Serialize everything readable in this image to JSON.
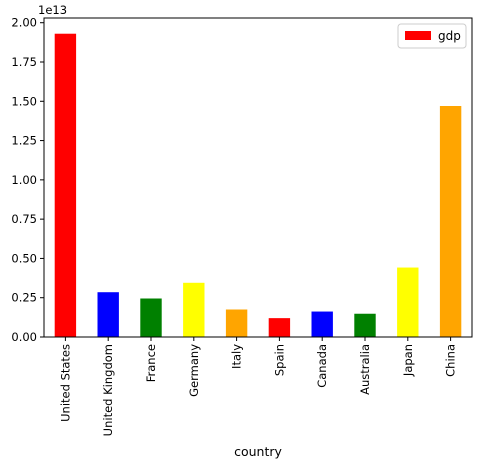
{
  "chart_data": {
    "type": "bar",
    "title": "",
    "xlabel": "country",
    "ylabel": "",
    "scale_label": "1e13",
    "categories": [
      "United States",
      "United Kingdom",
      "France",
      "Germany",
      "Italy",
      "Spain",
      "Canada",
      "Australia",
      "Japan",
      "China"
    ],
    "series": [
      {
        "name": "gdp",
        "values": [
          19300000000000.0,
          2850000000000.0,
          2450000000000.0,
          3450000000000.0,
          1750000000000.0,
          1200000000000.0,
          1620000000000.0,
          1480000000000.0,
          4420000000000.0,
          14700000000000.0
        ],
        "colors": [
          "#ff0000",
          "#0000ff",
          "#008000",
          "#ffff00",
          "#ffa500",
          "#ff0000",
          "#0000ff",
          "#008000",
          "#ffff00",
          "#ffa500"
        ],
        "legend_color": "#ff0000"
      }
    ],
    "ylim": [
      0,
      20300000000000.0
    ],
    "yticks": [
      0,
      2500000000000.0,
      5000000000000.0,
      7500000000000.0,
      10000000000000.0,
      12500000000000.0,
      15000000000000.0,
      17500000000000.0,
      20000000000000.0
    ],
    "ytick_labels": [
      "0.00",
      "0.25",
      "0.50",
      "0.75",
      "1.00",
      "1.25",
      "1.50",
      "1.75",
      "2.00"
    ],
    "legend_position": "top-right",
    "grid": false
  }
}
